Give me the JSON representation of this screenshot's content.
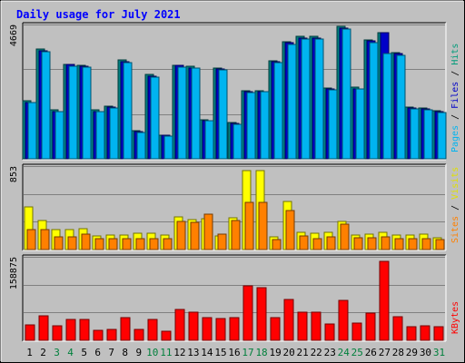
{
  "chart_data": {
    "type": "bar",
    "title": "Daily usage for July 2021",
    "x": [
      "1",
      "2",
      "3",
      "4",
      "5",
      "6",
      "7",
      "8",
      "9",
      "10",
      "11",
      "12",
      "13",
      "14",
      "15",
      "16",
      "17",
      "18",
      "19",
      "20",
      "21",
      "22",
      "23",
      "24",
      "25",
      "26",
      "27",
      "28",
      "29",
      "30",
      "31"
    ],
    "weekend_days": [
      "3",
      "4",
      "10",
      "11",
      "17",
      "18",
      "24",
      "25",
      "31"
    ],
    "panels": [
      {
        "id": "hits-files-pages",
        "max_label": "4669",
        "ymax": 4669,
        "legend": [
          {
            "text": "Pages",
            "color": "#00b4f0"
          },
          {
            "text": "Files",
            "color": "#0000c8"
          },
          {
            "text": "Hits",
            "color": "#009b7a"
          }
        ],
        "separator": " / ",
        "series": [
          {
            "name": "Hits",
            "color": "#008080",
            "values": [
              2010,
              3810,
              1700,
              3290,
              3240,
              1710,
              1840,
              3430,
              980,
              2920,
              830,
              3260,
              3220,
              1370,
              3170,
              1260,
              2370,
              2370,
              3410,
              4080,
              4250,
              4260,
              2470,
              4600,
              2490,
              4130,
              4380,
              3700,
              1800,
              1770,
              1670
            ]
          },
          {
            "name": "Files",
            "color": "#0000c8",
            "values": [
              1970,
              3760,
              1650,
              3270,
              3210,
              1650,
              1790,
              3390,
              950,
              2870,
              810,
              3240,
              3170,
              1330,
              3130,
              1230,
              2340,
              2340,
              3370,
              4030,
              4210,
              4210,
              2430,
              4550,
              2440,
              4090,
              4370,
              3650,
              1770,
              1730,
              1630
            ]
          },
          {
            "name": "Pages",
            "color": "#00b4f0",
            "values": [
              1950,
              3710,
              1630,
              3230,
              3180,
              1630,
              1760,
              3350,
              930,
              2830,
              790,
              3200,
              3150,
              1310,
              3100,
              1210,
              2310,
              2320,
              3330,
              3990,
              4170,
              4170,
              2410,
              4510,
              2420,
              4050,
              3660,
              3610,
              1740,
              1700,
              1610
            ]
          }
        ]
      },
      {
        "id": "visits-sites",
        "max_label": "853",
        "ymax": 853,
        "legend": [
          {
            "text": "Sites",
            "color": "#ff8000"
          },
          {
            "text": "Visits",
            "color": "#e0e000"
          }
        ],
        "separator": " / ",
        "series": [
          {
            "name": "Visits",
            "color": "#ffff00",
            "values": [
              436,
              300,
              200,
              200,
              213,
              140,
              150,
              150,
              163,
              163,
              150,
              336,
              310,
              313,
              140,
              320,
              805,
              805,
              130,
              488,
              180,
              163,
              176,
              290,
              150,
              160,
              176,
              150,
              150,
              153,
              120
            ]
          },
          {
            "name": "Sites",
            "color": "#ff8000",
            "values": [
              200,
              200,
              130,
              126,
              160,
              110,
              110,
              113,
              110,
              110,
              113,
              286,
              280,
              360,
              160,
              300,
              480,
              480,
              100,
              400,
              140,
              113,
              126,
              260,
              120,
              120,
              130,
              113,
              110,
              113,
              100
            ]
          }
        ]
      },
      {
        "id": "kbytes",
        "max_label": "158875",
        "ymax": 158875,
        "legend": [
          {
            "text": "KBytes",
            "color": "#ff0000"
          }
        ],
        "separator": "",
        "series": [
          {
            "name": "KBytes",
            "color": "#ff0000",
            "values": [
              30000,
              46000,
              27000,
              39000,
              40000,
              19000,
              21000,
              43000,
              20000,
              40000,
              18000,
              58000,
              53000,
              43000,
              42000,
              43000,
              104000,
              101000,
              44000,
              78000,
              53000,
              53000,
              31000,
              76000,
              32000,
              51000,
              151000,
              45000,
              26000,
              27000,
              26000
            ]
          }
        ]
      }
    ],
    "colors": {
      "frame_background": "#c0c0c0",
      "plot_background": "#c0c0c0",
      "gridline": "#808080",
      "title": "#0000ff",
      "tick_label": "#000000",
      "weekend_tick_label": "#00803c"
    },
    "grid": true
  }
}
